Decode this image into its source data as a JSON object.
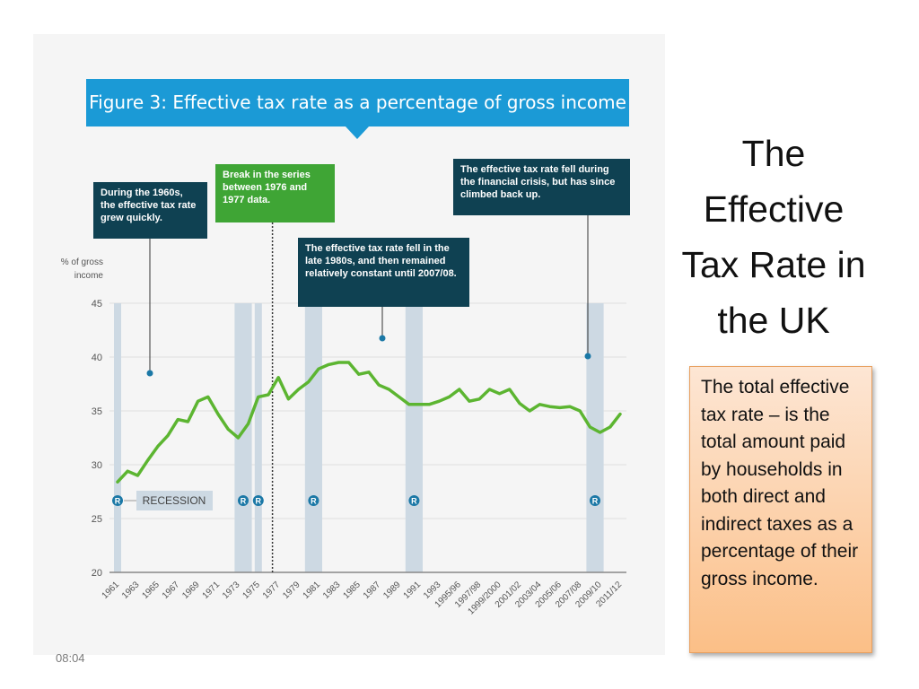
{
  "figure_title": "Figure 3: Effective tax rate as a percentage of gross income",
  "callouts": {
    "sixties": "During the 1960s, the effective tax rate grew quickly.",
    "break": "Break in the series between 1976 and 1977 data.",
    "eighties": "The effective tax rate fell in the late 1980s, and then remained relatively constant until 2007/08.",
    "crisis": "The effective tax rate fell during the financial crisis, but has since climbed back up."
  },
  "recession_label": "RECESSION",
  "recession_marker": "R",
  "slide_title": "The Effective Tax Rate in the UK",
  "definition": "The total effective tax rate – is the total amount paid by households in both direct and indirect taxes as a percentage of their gross income.",
  "slide_time": "08:04",
  "colors": {
    "line": "#5cb531",
    "recession_band": "#cdd9e3",
    "title_banner": "#1b9ad6",
    "callout_dark": "#0f4152",
    "callout_green": "#3fa535",
    "marker": "#1b78a6"
  },
  "chart_data": {
    "type": "line",
    "title": "Figure 3: Effective tax rate as a percentage of gross income",
    "ylabel": "% of gross income",
    "xlabel": "",
    "ylim": [
      20,
      45
    ],
    "yticks": [
      20,
      25,
      30,
      35,
      40,
      45
    ],
    "grid": true,
    "tick_labels": [
      "1961",
      "1963",
      "1965",
      "1967",
      "1969",
      "1971",
      "1973",
      "1975",
      "1977",
      "1979",
      "1981",
      "1983",
      "1985",
      "1987",
      "1989",
      "1991",
      "1993",
      "1995/96",
      "1997/98",
      "1999/2000",
      "2001/02",
      "2003/04",
      "2005/06",
      "2007/08",
      "2009/10",
      "2011/12"
    ],
    "categories": [
      "1961",
      "1962",
      "1963",
      "1964",
      "1965",
      "1966",
      "1967",
      "1968",
      "1969",
      "1970",
      "1971",
      "1972",
      "1973",
      "1974",
      "1975",
      "1976",
      "1977",
      "1978",
      "1979",
      "1980",
      "1981",
      "1982",
      "1983",
      "1984",
      "1985",
      "1986",
      "1987",
      "1988",
      "1989",
      "1990",
      "1991",
      "1992",
      "1993",
      "1994/95",
      "1995/96",
      "1996/97",
      "1997/98",
      "1998/99",
      "1999/2000",
      "2000/01",
      "2001/02",
      "2002/03",
      "2003/04",
      "2004/05",
      "2005/06",
      "2006/07",
      "2007/08",
      "2008/09",
      "2009/10",
      "2010/11",
      "2011/12"
    ],
    "values": [
      28.4,
      29.4,
      29.0,
      30.4,
      31.7,
      32.7,
      34.2,
      34.0,
      35.9,
      36.3,
      34.7,
      33.3,
      32.5,
      33.8,
      36.3,
      36.5,
      38.1,
      36.1,
      37.0,
      37.7,
      38.9,
      39.3,
      39.5,
      39.5,
      38.4,
      38.6,
      37.4,
      37.0,
      36.3,
      35.6,
      35.6,
      35.6,
      35.9,
      36.3,
      37.0,
      35.9,
      36.1,
      37.0,
      36.6,
      37.0,
      35.7,
      35.0,
      35.6,
      35.4,
      35.3,
      35.4,
      35.0,
      33.5,
      33.0,
      33.5,
      34.7
    ],
    "recessions": [
      [
        "1961",
        "1961"
      ],
      [
        "1973",
        "1974"
      ],
      [
        "1975",
        "1975"
      ],
      [
        "1980",
        "1981"
      ],
      [
        "1990",
        "1991"
      ],
      [
        "2008/09",
        "2009/10"
      ]
    ],
    "series_break": [
      "1976",
      "1977"
    ]
  }
}
